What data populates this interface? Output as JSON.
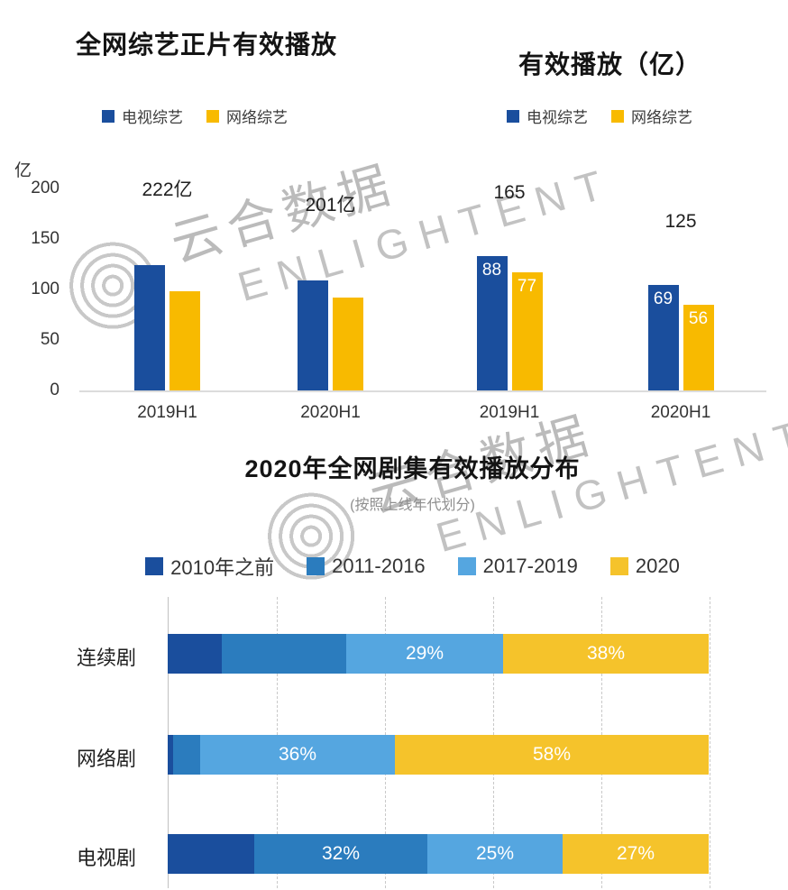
{
  "watermark": {
    "cn": "云合数据",
    "en": "ENLIGHTENT"
  },
  "chart_data": [
    {
      "type": "bar",
      "title": "全网综艺正片有效播放",
      "categories": [
        "2019H1",
        "2020H1"
      ],
      "series": [
        {
          "name": "电视综艺",
          "color": "#1A4E9D",
          "values": [
            124,
            109
          ]
        },
        {
          "name": "网络综艺",
          "color": "#F8BA00",
          "values": [
            98,
            92
          ]
        }
      ],
      "group_labels": [
        "222亿",
        "201亿"
      ],
      "show_bar_labels": false,
      "ylabel": "亿",
      "ylim": [
        0,
        200
      ],
      "yticks": [
        200,
        150,
        100,
        50,
        0
      ],
      "grid": false,
      "legend_position": "top"
    },
    {
      "type": "bar",
      "title": "有效播放（亿）",
      "categories": [
        "2019H1",
        "2020H1"
      ],
      "series": [
        {
          "name": "电视综艺",
          "color": "#1A4E9D",
          "values": [
            88,
            69
          ]
        },
        {
          "name": "网络综艺",
          "color": "#F8BA00",
          "values": [
            77,
            56
          ]
        }
      ],
      "group_labels": [
        "165",
        "125"
      ],
      "show_bar_labels": true,
      "ylim": [
        0,
        132
      ],
      "yticks": [],
      "grid": false,
      "legend_position": "top"
    },
    {
      "type": "stacked-bar-horizontal",
      "title": "2020年全网剧集有效播放分布",
      "subtitle": "(按照上线年代划分)",
      "categories": [
        "连续剧",
        "网络剧",
        "电视剧"
      ],
      "series": [
        {
          "name": "2010年之前",
          "color": "#1A4E9D",
          "values": [
            10,
            1,
            16
          ]
        },
        {
          "name": "2011-2016",
          "color": "#2B7CBE",
          "values": [
            23,
            5,
            32
          ]
        },
        {
          "name": "2017-2019",
          "color": "#55A6E0",
          "values": [
            29,
            36,
            25
          ]
        },
        {
          "name": "2020",
          "color": "#F5C32B",
          "values": [
            38,
            58,
            27
          ]
        }
      ],
      "segment_labels": [
        [
          "",
          "",
          "29%",
          "38%"
        ],
        [
          "",
          "",
          "36%",
          "58%"
        ],
        [
          "",
          "32%",
          "25%",
          "27%"
        ]
      ],
      "unit": "%",
      "xlim": [
        0,
        100
      ],
      "grid": "dashed-vertical",
      "legend_position": "top"
    }
  ]
}
